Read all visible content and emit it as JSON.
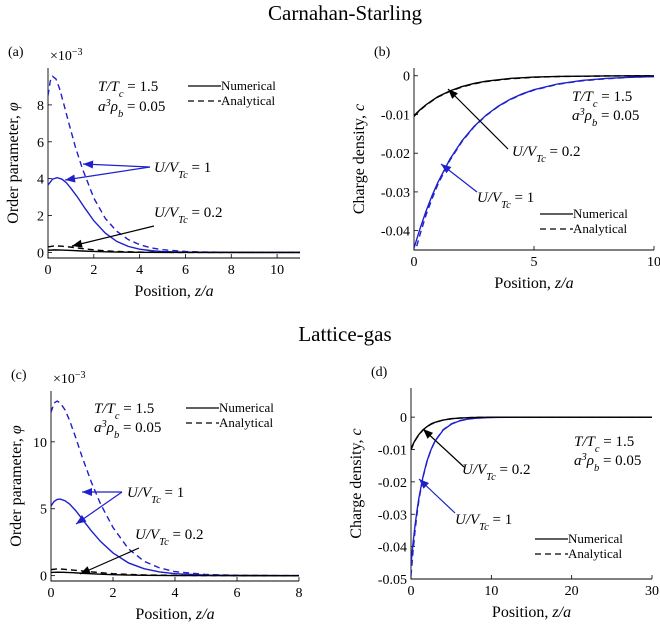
{
  "sections": [
    {
      "title": "Carnahan-Starling"
    },
    {
      "title": "Lattice-gas"
    }
  ],
  "colors": {
    "black": "#000000",
    "blue": "#1f1fcc"
  },
  "chart_data": [
    {
      "panel": "(a)",
      "type": "line",
      "xlabel": "Position, z/a",
      "ylabel": "Order parameter, φ",
      "exponent": "×10",
      "exponent_power": "−3",
      "xlim": [
        0,
        11
      ],
      "ylim": [
        -0.3,
        10
      ],
      "xticks": [
        0,
        2,
        4,
        6,
        8,
        10
      ],
      "yticks": [
        0,
        2,
        4,
        6,
        8
      ],
      "conditions": [
        "T/Tc = 1.5",
        "a³ρb = 0.05"
      ],
      "legend": [
        "Numerical",
        "Analytical"
      ],
      "annotations": [
        "U/VTc = 1",
        "U/VTc = 0.2"
      ],
      "series": [
        {
          "name": "Numerical",
          "annotation": "U/VTc = 1",
          "color": "blue",
          "dash": "solid",
          "x": [
            0,
            0.2,
            0.4,
            0.6,
            0.8,
            1.0,
            1.3,
            1.6,
            2.0,
            2.5,
            3.0,
            3.5,
            4.0,
            4.5,
            5.0,
            6.0,
            7.0,
            8.0,
            9.0,
            10.0,
            11.0
          ],
          "y": [
            3.65,
            3.98,
            4.05,
            3.98,
            3.78,
            3.48,
            2.98,
            2.42,
            1.72,
            1.05,
            0.6,
            0.33,
            0.18,
            0.1,
            0.05,
            0.015,
            0.005,
            0.002,
            0.001,
            0.0005,
            0.0002
          ]
        },
        {
          "name": "Analytical",
          "annotation": "U/VTc = 1",
          "color": "blue",
          "dash": "dashed",
          "x": [
            0,
            0.1,
            0.2,
            0.35,
            0.5,
            0.7,
            0.9,
            1.2,
            1.5,
            2.0,
            2.5,
            3.0,
            3.5,
            4.0,
            4.5,
            5.0,
            6.0,
            7.0,
            8.0,
            9.0,
            10.0,
            11.0
          ],
          "y": [
            8.5,
            9.3,
            9.55,
            9.4,
            8.9,
            8.0,
            7.05,
            5.7,
            4.55,
            2.95,
            1.85,
            1.15,
            0.7,
            0.42,
            0.25,
            0.15,
            0.055,
            0.02,
            0.008,
            0.003,
            0.001,
            0.0005
          ]
        },
        {
          "name": "Numerical",
          "annotation": "U/VTc = 0.2",
          "color": "black",
          "dash": "solid",
          "x": [
            0,
            0.3,
            0.6,
            1.0,
            1.5,
            2.0,
            2.5,
            3.0,
            4.0,
            5.0,
            6.0,
            8.0,
            11.0
          ],
          "y": [
            0.12,
            0.14,
            0.13,
            0.11,
            0.08,
            0.055,
            0.035,
            0.022,
            0.009,
            0.004,
            0.002,
            0.0005,
            0.0001
          ]
        },
        {
          "name": "Analytical",
          "annotation": "U/VTc = 0.2",
          "color": "black",
          "dash": "dashed",
          "x": [
            0,
            0.3,
            0.6,
            1.0,
            1.5,
            2.0,
            2.5,
            3.0,
            4.0,
            5.0,
            6.0,
            8.0,
            11.0
          ],
          "y": [
            0.3,
            0.36,
            0.34,
            0.29,
            0.21,
            0.14,
            0.09,
            0.055,
            0.02,
            0.008,
            0.003,
            0.0008,
            0.0001
          ]
        }
      ]
    },
    {
      "panel": "(b)",
      "type": "line",
      "xlabel": "Position, z/a",
      "ylabel": "Charge density, c",
      "xlim": [
        0,
        10
      ],
      "ylim": [
        -0.045,
        0.002
      ],
      "xticks": [
        0,
        5,
        10
      ],
      "yticks": [
        0,
        -0.01,
        -0.02,
        -0.03,
        -0.04
      ],
      "ytick_labels": [
        "0",
        "-0.01",
        "-0.02",
        "-0.03",
        "-0.04"
      ],
      "conditions": [
        "T/Tc = 1.5",
        "a³ρb = 0.05"
      ],
      "legend": [
        "Numerical",
        "Analytical"
      ],
      "annotations": [
        "U/VTc = 0.2",
        "U/VTc = 1"
      ],
      "series": [
        {
          "name": "Numerical",
          "annotation": "U/VTc = 1",
          "color": "blue",
          "dash": "solid",
          "x": [
            0,
            0.25,
            0.5,
            0.75,
            1.0,
            1.5,
            2.0,
            2.5,
            3.0,
            3.5,
            4.0,
            4.5,
            5.0,
            6.0,
            7.0,
            8.0,
            9.0,
            10.0
          ],
          "y": [
            -0.0445,
            -0.0395,
            -0.035,
            -0.031,
            -0.0275,
            -0.0215,
            -0.0168,
            -0.0131,
            -0.0102,
            -0.0079,
            -0.0061,
            -0.0047,
            -0.0036,
            -0.0021,
            -0.0012,
            -0.0007,
            -0.0004,
            -0.0002
          ]
        },
        {
          "name": "Analytical",
          "annotation": "U/VTc = 1",
          "color": "blue",
          "dash": "dashed",
          "x": [
            0,
            0.25,
            0.5,
            0.75,
            1.0,
            1.5,
            2.0,
            2.5,
            3.0,
            3.5,
            4.0,
            4.5,
            5.0,
            6.0,
            7.0,
            8.0,
            9.0,
            10.0
          ],
          "y": [
            -0.0465,
            -0.041,
            -0.036,
            -0.0318,
            -0.028,
            -0.0218,
            -0.017,
            -0.0132,
            -0.0103,
            -0.008,
            -0.0062,
            -0.0048,
            -0.0037,
            -0.0022,
            -0.0013,
            -0.0008,
            -0.0004,
            -0.0002
          ]
        },
        {
          "name": "Numerical",
          "annotation": "U/VTc = 0.2",
          "color": "black",
          "dash": "solid",
          "x": [
            0,
            0.25,
            0.5,
            0.75,
            1.0,
            1.5,
            2.0,
            2.5,
            3.0,
            4.0,
            5.0,
            6.0,
            8.0,
            10.0
          ],
          "y": [
            -0.0103,
            -0.0088,
            -0.0075,
            -0.0064,
            -0.0054,
            -0.0039,
            -0.0028,
            -0.002,
            -0.0014,
            -0.0007,
            -0.00035,
            -0.00018,
            -5e-05,
            -1e-05
          ]
        },
        {
          "name": "Analytical",
          "annotation": "U/VTc = 0.2",
          "color": "black",
          "dash": "dashed",
          "x": [
            0,
            0.25,
            0.5,
            0.75,
            1.0,
            1.5,
            2.0,
            2.5,
            3.0,
            4.0,
            5.0,
            6.0,
            8.0,
            10.0
          ],
          "y": [
            -0.0105,
            -0.0089,
            -0.0076,
            -0.0065,
            -0.0055,
            -0.004,
            -0.0029,
            -0.0021,
            -0.0015,
            -0.0008,
            -0.0004,
            -0.0002,
            -6e-05,
            -1e-05
          ]
        }
      ]
    },
    {
      "panel": "(c)",
      "type": "line",
      "xlabel": "Position, z/a",
      "ylabel": "Order parameter, φ",
      "exponent": "×10",
      "exponent_power": "−3",
      "xlim": [
        0,
        8
      ],
      "ylim": [
        -0.4,
        13.8
      ],
      "xticks": [
        0,
        2,
        4,
        6,
        8
      ],
      "yticks": [
        0,
        5,
        10
      ],
      "conditions": [
        "T/Tc = 1.5",
        "a³ρb = 0.05"
      ],
      "legend": [
        "Numerical",
        "Analytical"
      ],
      "annotations": [
        "U/VTc = 1",
        "U/VTc = 0.2"
      ],
      "series": [
        {
          "name": "Numerical",
          "annotation": "U/VTc = 1",
          "color": "blue",
          "dash": "solid",
          "x": [
            0,
            0.1,
            0.2,
            0.3,
            0.45,
            0.6,
            0.8,
            1.0,
            1.3,
            1.6,
            2.0,
            2.5,
            3.0,
            3.5,
            4.0,
            5.0,
            6.0,
            7.0,
            8.0
          ],
          "y": [
            5.2,
            5.55,
            5.7,
            5.72,
            5.6,
            5.35,
            4.85,
            4.25,
            3.35,
            2.55,
            1.7,
            0.95,
            0.52,
            0.28,
            0.15,
            0.045,
            0.014,
            0.004,
            0.001
          ]
        },
        {
          "name": "Analytical",
          "annotation": "U/VTc = 1",
          "color": "blue",
          "dash": "dashed",
          "x": [
            0,
            0.1,
            0.2,
            0.3,
            0.45,
            0.6,
            0.8,
            1.0,
            1.3,
            1.6,
            2.0,
            2.5,
            3.0,
            3.5,
            4.0,
            5.0,
            6.0,
            7.0,
            8.0
          ],
          "y": [
            12.2,
            12.9,
            13.05,
            12.9,
            12.4,
            11.6,
            10.3,
            8.9,
            7.0,
            5.35,
            3.6,
            2.0,
            1.08,
            0.58,
            0.3,
            0.085,
            0.025,
            0.007,
            0.002
          ]
        },
        {
          "name": "Numerical",
          "annotation": "U/VTc = 0.2",
          "color": "black",
          "dash": "solid",
          "x": [
            0,
            0.2,
            0.4,
            0.7,
            1.0,
            1.5,
            2.0,
            2.5,
            3.0,
            4.0,
            5.0,
            6.0,
            8.0
          ],
          "y": [
            0.24,
            0.26,
            0.25,
            0.22,
            0.18,
            0.12,
            0.075,
            0.045,
            0.027,
            0.009,
            0.003,
            0.001,
            0.0001
          ]
        },
        {
          "name": "Analytical",
          "annotation": "U/VTc = 0.2",
          "color": "black",
          "dash": "dashed",
          "x": [
            0,
            0.2,
            0.4,
            0.7,
            1.0,
            1.5,
            2.0,
            2.5,
            3.0,
            4.0,
            5.0,
            6.0,
            8.0
          ],
          "y": [
            0.45,
            0.5,
            0.48,
            0.42,
            0.35,
            0.24,
            0.15,
            0.09,
            0.055,
            0.019,
            0.006,
            0.002,
            0.0002
          ]
        }
      ]
    },
    {
      "panel": "(d)",
      "type": "line",
      "xlabel": "Position, z/a",
      "ylabel": "Charge density, c",
      "xlim": [
        0,
        30
      ],
      "ylim": [
        -0.05,
        0.009
      ],
      "xticks": [
        0,
        10,
        20,
        30
      ],
      "yticks": [
        0,
        -0.01,
        -0.02,
        -0.03,
        -0.04,
        -0.05
      ],
      "ytick_labels": [
        "0",
        "-0.01",
        "-0.02",
        "-0.03",
        "-0.04",
        "-0.05"
      ],
      "conditions": [
        "T/Tc = 1.5",
        "a³ρb = 0.05"
      ],
      "legend": [
        "Numerical",
        "Analytical"
      ],
      "annotations": [
        "U/VTc = 0.2",
        "U/VTc = 1"
      ],
      "series": [
        {
          "name": "Numerical",
          "annotation": "U/VTc = 1",
          "color": "blue",
          "dash": "solid",
          "x": [
            0,
            0.25,
            0.5,
            0.75,
            1.0,
            1.5,
            2.0,
            2.5,
            3.0,
            4.0,
            5.0,
            6.0,
            7.0,
            8.0,
            10.0,
            15.0,
            20.0,
            30.0
          ],
          "y": [
            -0.0455,
            -0.039,
            -0.0335,
            -0.0288,
            -0.0248,
            -0.0183,
            -0.0135,
            -0.01,
            -0.0074,
            -0.004,
            -0.0022,
            -0.0012,
            -0.00065,
            -0.00035,
            -0.0001,
            0,
            0,
            0
          ]
        },
        {
          "name": "Analytical",
          "annotation": "U/VTc = 1",
          "color": "blue",
          "dash": "dashed",
          "x": [
            0,
            0.25,
            0.5,
            0.75,
            1.0,
            1.5,
            2.0,
            2.5,
            3.0,
            4.0,
            5.0,
            6.0,
            7.0,
            8.0,
            10.0,
            15.0,
            20.0,
            30.0
          ],
          "y": [
            -0.049,
            -0.0415,
            -0.0352,
            -0.0299,
            -0.0254,
            -0.0185,
            -0.0136,
            -0.01,
            -0.0073,
            -0.0039,
            -0.0021,
            -0.0011,
            -0.0006,
            -0.0003,
            -8e-05,
            0,
            0,
            0
          ]
        },
        {
          "name": "Numerical",
          "annotation": "U/VTc = 0.2",
          "color": "black",
          "dash": "solid",
          "x": [
            0,
            0.25,
            0.5,
            0.75,
            1.0,
            1.5,
            2.0,
            2.5,
            3.0,
            4.0,
            5.0,
            6.0,
            8.0,
            10.0,
            15.0,
            30.0
          ],
          "y": [
            -0.0098,
            -0.0084,
            -0.0072,
            -0.0062,
            -0.0053,
            -0.0039,
            -0.0029,
            -0.0021,
            -0.0016,
            -0.0009,
            -0.0005,
            -0.00028,
            -8e-05,
            -2e-05,
            0,
            0
          ]
        },
        {
          "name": "Analytical",
          "annotation": "U/VTc = 0.2",
          "color": "black",
          "dash": "dashed",
          "x": [
            0,
            0.25,
            0.5,
            0.75,
            1.0,
            1.5,
            2.0,
            2.5,
            3.0,
            4.0,
            5.0,
            6.0,
            8.0,
            10.0,
            15.0,
            30.0
          ],
          "y": [
            -0.0101,
            -0.0086,
            -0.0073,
            -0.0063,
            -0.0054,
            -0.004,
            -0.0029,
            -0.0022,
            -0.0016,
            -0.0009,
            -0.0005,
            -0.00028,
            -8e-05,
            -2e-05,
            0,
            0
          ]
        }
      ]
    }
  ]
}
